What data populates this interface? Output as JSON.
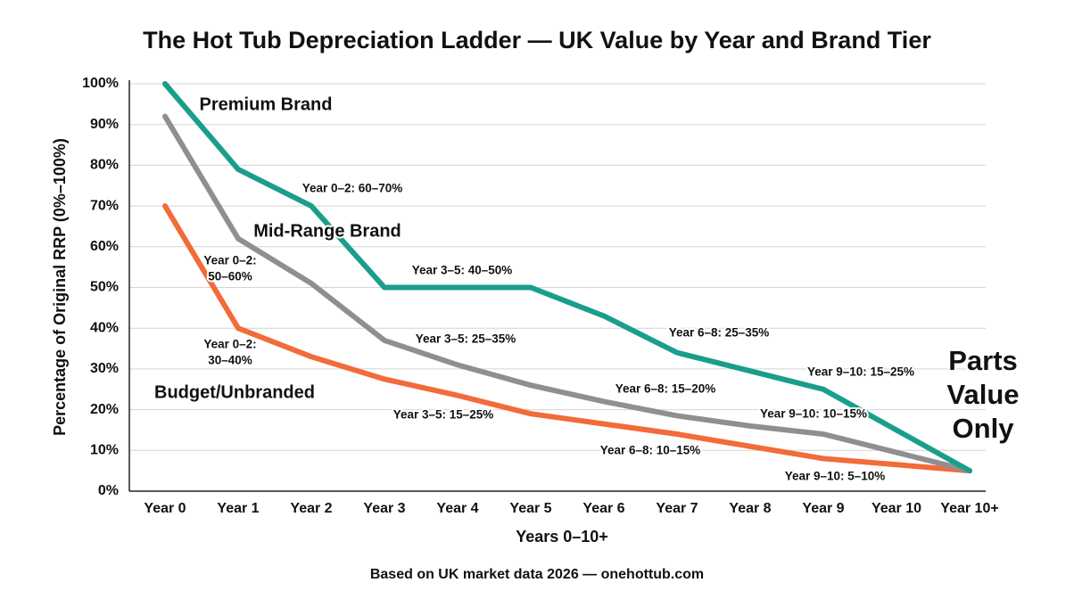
{
  "chart_data": {
    "type": "line",
    "title": "The Hot Tub Depreciation Ladder — UK Value by Year and Brand Tier",
    "x_label": "Years 0–10+",
    "y_label": "Percentage of Original RRP (0%–100%)",
    "source": "Based on UK market data 2026 — onehottub.com",
    "categories": [
      "Year 0",
      "Year 1",
      "Year 2",
      "Year 3",
      "Year 4",
      "Year 5",
      "Year 6",
      "Year 7",
      "Year 8",
      "Year 9",
      "Year 10",
      "Year 10+"
    ],
    "series": [
      {
        "name": "Premium Brand",
        "color": "#1a9e8c",
        "values": [
          100,
          79,
          70,
          50,
          50,
          50,
          43,
          34,
          29.5,
          25,
          15,
          5
        ]
      },
      {
        "name": "Mid-Range Brand",
        "color": "#8f8f8f",
        "values": [
          92,
          62,
          51,
          37,
          31,
          26,
          22,
          18.5,
          16,
          14,
          9.5,
          5
        ]
      },
      {
        "name": "Budget/Unbranded",
        "color": "#f26b3a",
        "values": [
          70,
          40,
          33,
          27.5,
          23.5,
          19,
          16.5,
          14,
          11,
          8,
          6.5,
          5
        ]
      }
    ],
    "ylim": [
      0,
      100
    ],
    "yticks": [
      {
        "value": 0,
        "label": "0%"
      },
      {
        "value": 10,
        "label": "10%"
      },
      {
        "value": 20,
        "label": "20%"
      },
      {
        "value": 30,
        "label": "30%"
      },
      {
        "value": 40,
        "label": "40%"
      },
      {
        "value": 50,
        "label": "50%"
      },
      {
        "value": 60,
        "label": "60%"
      },
      {
        "value": 70,
        "label": "70%"
      },
      {
        "value": 80,
        "label": "80%"
      },
      {
        "value": 90,
        "label": "90%"
      },
      {
        "value": 100,
        "label": "100%"
      }
    ],
    "grid": true,
    "annotations": [
      [
        "Year 0–2: 60–70%"
      ],
      [
        "Year 0–2:",
        "50–60%"
      ],
      [
        "Year 0–2:",
        "30–40%"
      ],
      [
        "Year 3–5: 40–50%"
      ],
      [
        "Year 3–5: 25–35%"
      ],
      [
        "Year 3–5: 15–25%"
      ],
      [
        "Year 6–8: 25–35%"
      ],
      [
        "Year 6–8: 15–20%"
      ],
      [
        "Year 6–8: 10–15%"
      ],
      [
        "Year 9–10: 15–25%"
      ],
      [
        "Year 9–10: 10–15%"
      ],
      [
        "Year 9–10: 5–10%"
      ],
      [
        "Parts",
        "Value",
        "Only"
      ]
    ]
  }
}
